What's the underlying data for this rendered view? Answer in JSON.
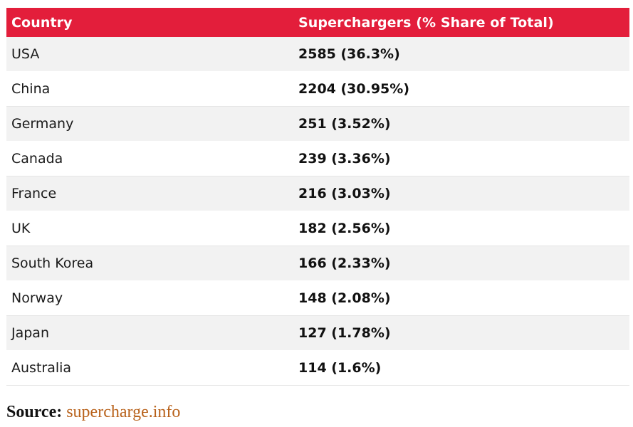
{
  "table": {
    "headers": [
      "Country",
      "Superchargers (% Share of Total)"
    ],
    "rows": [
      {
        "country": "USA",
        "value": "2585 (36.3%)"
      },
      {
        "country": "China",
        "value": "2204 (30.95%)"
      },
      {
        "country": "Germany",
        "value": "251 (3.52%)"
      },
      {
        "country": "Canada",
        "value": "239 (3.36%)"
      },
      {
        "country": "France",
        "value": "216 (3.03%)"
      },
      {
        "country": "UK",
        "value": "182 (2.56%)"
      },
      {
        "country": "South Korea",
        "value": "166 (2.33%)"
      },
      {
        "country": "Norway",
        "value": "148 (2.08%)"
      },
      {
        "country": "Japan",
        "value": "127 (1.78%)"
      },
      {
        "country": "Australia",
        "value": "114 (1.6%)"
      }
    ]
  },
  "source": {
    "label": "Source:",
    "link_text": "supercharge.info"
  },
  "colors": {
    "header_bg": "#e31e3b",
    "header_text": "#ffffff",
    "stripe_bg": "#f2f2f2",
    "link": "#b8611a"
  }
}
